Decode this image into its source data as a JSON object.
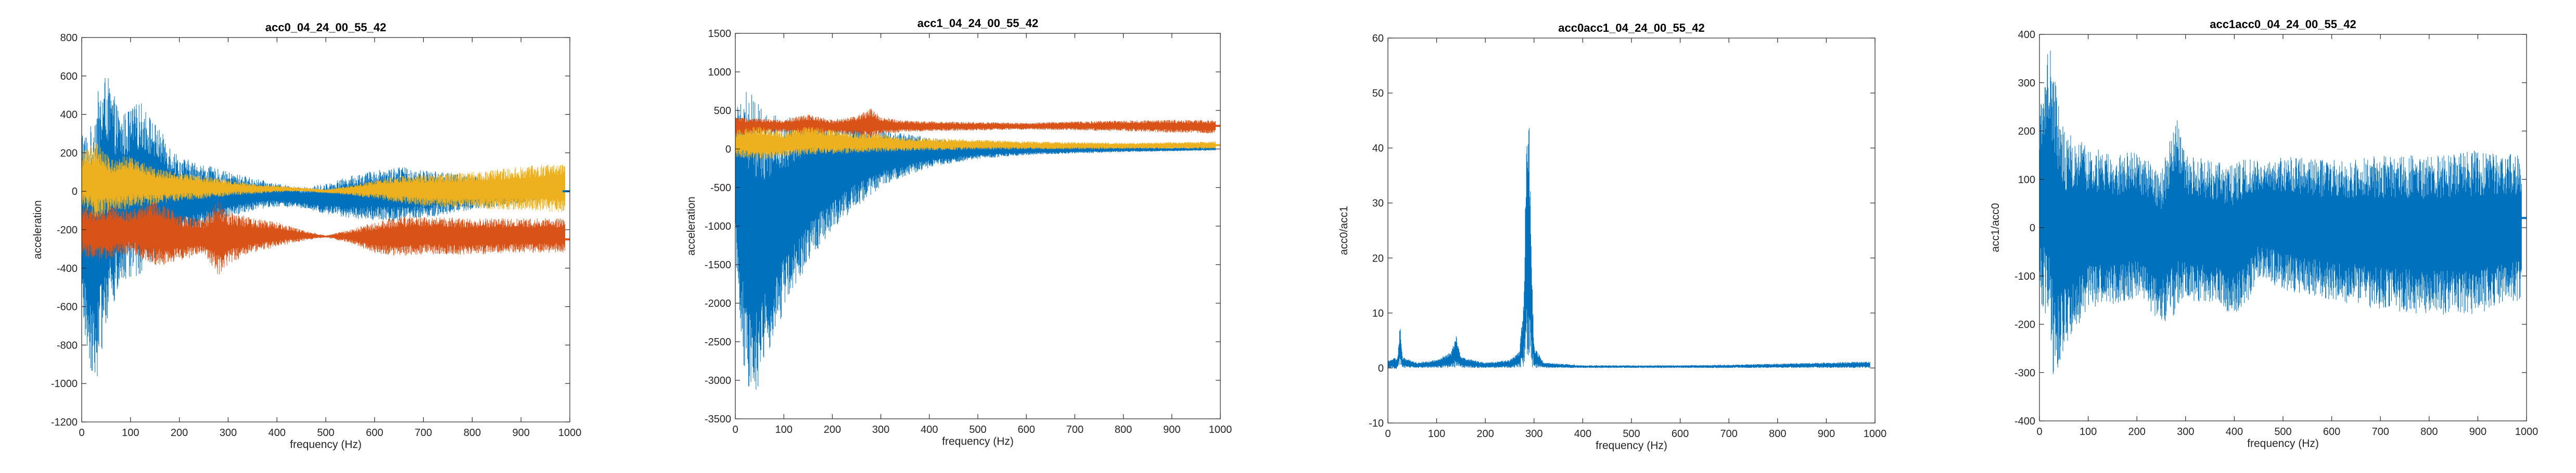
{
  "colors": {
    "blue": "#0072BD",
    "orange": "#D95319",
    "yellow": "#EDB120",
    "axis": "#262626",
    "title": "#000000"
  },
  "chart_data": [
    {
      "type": "area",
      "title": "acc0_04_24_00_55_42",
      "xlabel": "frequency (Hz)",
      "ylabel": "acceleration",
      "xlim": [
        0,
        1000
      ],
      "ylim": [
        -1200,
        800
      ],
      "xticks": [
        0,
        100,
        200,
        300,
        400,
        500,
        600,
        700,
        800,
        900,
        1000
      ],
      "yticks": [
        -1200,
        -1000,
        -800,
        -600,
        -400,
        -200,
        0,
        200,
        400,
        600,
        800
      ],
      "series": [
        {
          "color": "blue",
          "x": [
            0,
            15,
            30,
            50,
            80,
            120,
            160,
            200,
            250,
            300,
            350,
            400,
            450,
            500,
            550,
            600,
            650,
            700,
            750,
            800,
            850,
            900,
            950,
            990
          ],
          "upper": [
            350,
            300,
            500,
            620,
            400,
            470,
            320,
            180,
            140,
            100,
            70,
            40,
            20,
            40,
            80,
            110,
            130,
            110,
            100,
            80,
            60,
            40,
            20,
            30
          ],
          "lower": [
            -650,
            -900,
            -1000,
            -700,
            -500,
            -430,
            -330,
            -250,
            -200,
            -140,
            -100,
            -80,
            -90,
            -120,
            -140,
            -150,
            -160,
            -140,
            -120,
            -100,
            -80,
            -60,
            -40,
            -20
          ]
        },
        {
          "color": "orange",
          "x": [
            0,
            30,
            60,
            100,
            150,
            200,
            250,
            280,
            300,
            350,
            400,
            450,
            500,
            550,
            600,
            650,
            700,
            800,
            900,
            990
          ],
          "upper": [
            -80,
            -90,
            -70,
            -100,
            -30,
            -120,
            -140,
            -40,
            -100,
            -140,
            -160,
            -200,
            -230,
            -200,
            -160,
            -130,
            -130,
            -140,
            -140,
            -140
          ],
          "lower": [
            -330,
            -360,
            -350,
            -320,
            -400,
            -360,
            -330,
            -440,
            -380,
            -320,
            -290,
            -260,
            -240,
            -270,
            -320,
            -340,
            -330,
            -330,
            -320,
            -320
          ]
        },
        {
          "color": "yellow",
          "x": [
            0,
            30,
            60,
            100,
            150,
            200,
            250,
            300,
            350,
            400,
            450,
            500,
            550,
            600,
            650,
            700,
            800,
            900,
            990
          ],
          "upper": [
            200,
            260,
            170,
            190,
            120,
            100,
            80,
            60,
            40,
            30,
            20,
            10,
            30,
            60,
            80,
            90,
            100,
            130,
            150
          ],
          "lower": [
            -90,
            -140,
            -110,
            -90,
            -70,
            -50,
            -40,
            -25,
            -15,
            -5,
            0,
            -10,
            -20,
            -40,
            -60,
            -80,
            -90,
            -100,
            -110
          ]
        }
      ],
      "line_ends": [
        {
          "color": "blue",
          "value": 0
        },
        {
          "color": "orange",
          "value": -250
        }
      ]
    },
    {
      "type": "area",
      "title": "acc1_04_24_00_55_42",
      "xlabel": "frequency (Hz)",
      "ylabel": "acceleration",
      "xlim": [
        0,
        1000
      ],
      "ylim": [
        -3500,
        1500
      ],
      "xticks": [
        0,
        100,
        200,
        300,
        400,
        500,
        600,
        700,
        800,
        900,
        1000
      ],
      "yticks": [
        -3500,
        -3000,
        -2500,
        -2000,
        -1500,
        -1000,
        -500,
        0,
        500,
        1000,
        1500
      ],
      "series": [
        {
          "color": "blue",
          "x": [
            0,
            20,
            40,
            60,
            100,
            150,
            200,
            250,
            300,
            350,
            400,
            450,
            500,
            600,
            700,
            800,
            900,
            990
          ],
          "upper": [
            700,
            800,
            700,
            500,
            400,
            450,
            350,
            380,
            250,
            200,
            150,
            100,
            80,
            50,
            40,
            30,
            20,
            30
          ],
          "lower": [
            -1500,
            -3000,
            -3250,
            -2800,
            -2100,
            -1500,
            -1050,
            -750,
            -500,
            -350,
            -250,
            -180,
            -130,
            -80,
            -60,
            -40,
            -30,
            -20
          ]
        },
        {
          "color": "orange",
          "x": [
            0,
            50,
            100,
            150,
            200,
            250,
            280,
            300,
            350,
            400,
            500,
            600,
            700,
            800,
            900,
            990
          ],
          "upper": [
            420,
            400,
            380,
            450,
            380,
            430,
            530,
            420,
            370,
            360,
            350,
            340,
            360,
            370,
            380,
            380
          ],
          "lower": [
            150,
            200,
            220,
            160,
            200,
            180,
            120,
            190,
            220,
            230,
            240,
            250,
            240,
            230,
            210,
            200
          ]
        },
        {
          "color": "yellow",
          "x": [
            0,
            50,
            100,
            150,
            200,
            250,
            300,
            350,
            400,
            500,
            600,
            700,
            800,
            900,
            990
          ],
          "upper": [
            250,
            300,
            230,
            300,
            250,
            200,
            200,
            150,
            140,
            120,
            100,
            90,
            80,
            90,
            100
          ],
          "lower": [
            -100,
            -150,
            -110,
            -80,
            -70,
            -50,
            -40,
            -30,
            -20,
            -10,
            -5,
            -5,
            0,
            0,
            0
          ]
        }
      ],
      "line_ends": [
        {
          "color": "orange",
          "value": 300
        },
        {
          "color": "yellow",
          "value": 50
        }
      ]
    },
    {
      "type": "line",
      "title": "acc0acc1_04_24_00_55_42",
      "xlabel": "frequency (Hz)",
      "ylabel": "acc0/acc1",
      "xlim": [
        0,
        1000
      ],
      "ylim": [
        -10,
        60
      ],
      "xticks": [
        0,
        100,
        200,
        300,
        400,
        500,
        600,
        700,
        800,
        900,
        1000
      ],
      "yticks": [
        -10,
        0,
        10,
        20,
        30,
        40,
        50,
        60
      ],
      "series": [
        {
          "color": "blue",
          "x": [
            0,
            20,
            25,
            30,
            60,
            100,
            130,
            140,
            150,
            200,
            250,
            270,
            280,
            285,
            290,
            295,
            300,
            320,
            400,
            500,
            600,
            700,
            800,
            900,
            990
          ],
          "upper": [
            1.5,
            2,
            8,
            2,
            1,
            1.5,
            3,
            6,
            2,
            1,
            1.5,
            3,
            15,
            51,
            45,
            20,
            4,
            1,
            0.5,
            0.5,
            0.5,
            0.6,
            0.8,
            1,
            1.2
          ],
          "lower": [
            0,
            -0.2,
            0,
            0,
            0,
            0,
            0,
            0,
            0,
            0,
            0,
            0,
            0,
            0,
            0,
            0,
            0,
            0,
            0,
            0,
            0,
            0,
            0,
            0,
            0
          ]
        }
      ],
      "line_ends": []
    },
    {
      "type": "line",
      "title": "acc1acc0_04_24_00_55_42",
      "xlabel": "frequency (Hz)",
      "ylabel": "acc1/acc0",
      "xlim": [
        0,
        1000
      ],
      "ylim": [
        -400,
        400
      ],
      "xticks": [
        0,
        100,
        200,
        300,
        400,
        500,
        600,
        700,
        800,
        900,
        1000
      ],
      "yticks": [
        -400,
        -300,
        -200,
        -100,
        0,
        100,
        200,
        300,
        400
      ],
      "series": [
        {
          "color": "blue",
          "x": [
            0,
            20,
            30,
            50,
            100,
            150,
            200,
            250,
            280,
            300,
            350,
            400,
            430,
            450,
            500,
            600,
            700,
            800,
            900,
            990
          ],
          "upper": [
            250,
            380,
            330,
            200,
            170,
            150,
            160,
            120,
            240,
            150,
            140,
            130,
            150,
            140,
            150,
            140,
            150,
            150,
            160,
            150
          ],
          "lower": [
            -150,
            -200,
            -330,
            -250,
            -170,
            -160,
            -150,
            -200,
            -180,
            -150,
            -160,
            -180,
            -150,
            -100,
            -130,
            -150,
            -170,
            -180,
            -180,
            -150
          ]
        }
      ],
      "line_ends": [
        {
          "color": "blue",
          "value": 20
        }
      ]
    }
  ]
}
